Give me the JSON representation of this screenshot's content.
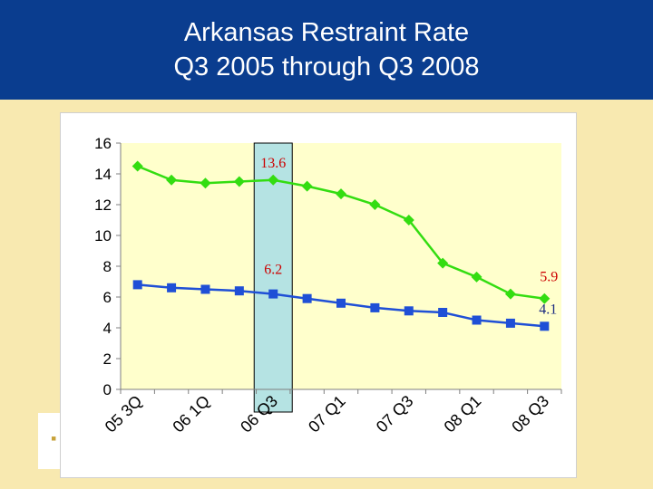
{
  "slide": {
    "title_line1": "Arkansas Restraint Rate",
    "title_line2": "Q3 2005 through  Q3 2008"
  },
  "colors": {
    "title_band": "#0a3d8f",
    "slide_background": "#f8e9b0",
    "plot_background": "#ffffcc",
    "highlight_fill": "#b5e3e3",
    "green_series": "#33dd11",
    "blue_series": "#1f4fd6",
    "annotation_red": "#cc0000",
    "annotation_blue": "#1a2a80"
  },
  "chart_data": {
    "type": "line",
    "title": "",
    "xlabel": "",
    "ylabel": "",
    "ylim": [
      0,
      16
    ],
    "yticks": [
      0,
      2,
      4,
      6,
      8,
      10,
      12,
      14,
      16
    ],
    "grid": false,
    "legend": "none",
    "tick_labels": [
      "05 3Q",
      "06 1Q",
      "06 Q3",
      "07 Q1",
      "07 Q3",
      "08 Q1",
      "08 Q3"
    ],
    "tick_positions": [
      0,
      2,
      4,
      6,
      8,
      10,
      12
    ],
    "x": [
      0,
      1,
      2,
      3,
      4,
      5,
      6,
      7,
      8,
      9,
      10,
      11,
      12
    ],
    "series": [
      {
        "values": [
          14.5,
          13.6,
          13.4,
          13.5,
          13.6,
          13.2,
          12.7,
          12.0,
          11.0,
          8.2,
          7.3,
          6.2,
          5.9
        ],
        "color": "#33dd11",
        "marker": "diamond"
      },
      {
        "values": [
          6.8,
          6.6,
          6.5,
          6.4,
          6.2,
          5.9,
          5.6,
          5.3,
          5.1,
          5.0,
          4.5,
          4.3,
          4.1
        ],
        "color": "#1f4fd6",
        "marker": "square"
      }
    ],
    "highlight_x": 4,
    "annotations": [
      {
        "text": "13.6",
        "series": 0,
        "index": 4,
        "color": "#cc0000"
      },
      {
        "text": "6.2",
        "series": 1,
        "index": 4,
        "color": "#cc0000"
      },
      {
        "text": "5.9",
        "series": 0,
        "index": 12,
        "color": "#cc0000"
      },
      {
        "text": "4.1",
        "series": 1,
        "index": 12,
        "color": "#1a2a80"
      }
    ]
  }
}
